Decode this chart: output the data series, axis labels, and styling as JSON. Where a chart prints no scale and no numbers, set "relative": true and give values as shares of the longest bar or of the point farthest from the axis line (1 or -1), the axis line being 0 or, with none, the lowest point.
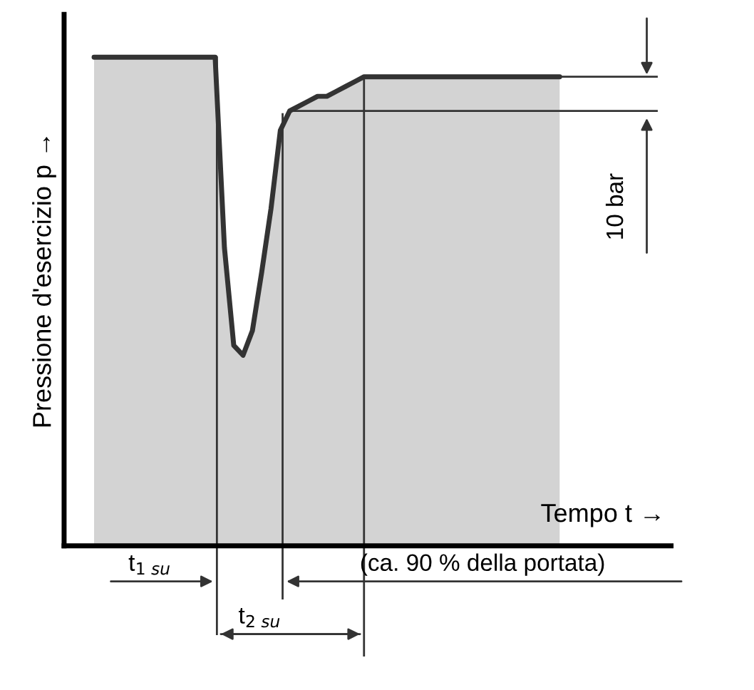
{
  "chart_data": {
    "type": "line",
    "relative": true,
    "ref_lines": [
      {
        "axis": "y",
        "value": 0.96,
        "color": "#333333"
      },
      {
        "axis": "y",
        "value": 0.89,
        "color": "#333333"
      }
    ],
    "ylabel": "Pressione d'esercizio p →",
    "xlabel": "Tempo t →",
    "categories": [
      null,
      null,
      null,
      null,
      null,
      null,
      null,
      null,
      null,
      null,
      null,
      null,
      null,
      null,
      null,
      null,
      null,
      null,
      null,
      null,
      null,
      null,
      null,
      null,
      null,
      null,
      null,
      null,
      null,
      null,
      null,
      null,
      null,
      null,
      null,
      null,
      null,
      null,
      null,
      null,
      null,
      null,
      null,
      null,
      null,
      null,
      null,
      null,
      null,
      null,
      null
    ],
    "series": [
      {
        "color": "#333333",
        "values": [
          1,
          1,
          1,
          1,
          1,
          1,
          1,
          1,
          1,
          1,
          1,
          1,
          1,
          1,
          0.61,
          0.41,
          0.39,
          0.44,
          0.56,
          0.69,
          0.85,
          0.89,
          0.9,
          0.91,
          0.92,
          0.92,
          0.93,
          0.94,
          0.95,
          0.96,
          0.96,
          0.96,
          0.96,
          0.96,
          0.96,
          0.96,
          0.96,
          0.96,
          0.96,
          0.96,
          0.96,
          0.96,
          0.96,
          0.96,
          0.96,
          0.96,
          0.96,
          0.96,
          0.96,
          0.96,
          0.96
        ]
      }
    ],
    "annotations": [
      "10 bar",
      "t$_{1 su}$",
      "t$_{2 su}$",
      "(ca. 90 % della portata)"
    ],
    "legend": false
  }
}
